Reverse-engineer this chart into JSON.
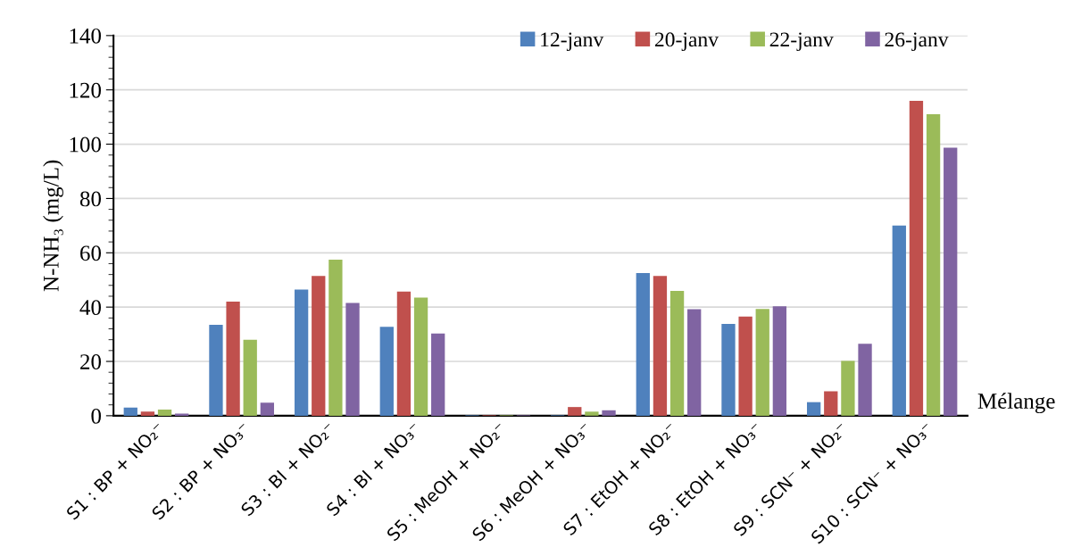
{
  "chart_data": {
    "type": "bar",
    "xlabel": "Mélange",
    "ylabel": "N-NH₃ (mg/L)",
    "categories": [
      "S1 : BP + NO₂⁻",
      "S2 : BP + NO₃⁻",
      "S3 : BI + NO₂⁻",
      "S4 : BI + NO₃⁻",
      "S5 : MeOH + NO₂⁻",
      "S6 : MeOH + NO₃⁻",
      "S7 : EtOH + NO₂⁻",
      "S8 : EtOH + NO₃⁻",
      "S9 : SCN⁻ + NO₂⁻",
      "S10 : SCN⁻ + NO₃⁻"
    ],
    "series": [
      {
        "name": "12-janv",
        "color": "#4f81bd",
        "values": [
          3,
          33.5,
          46.5,
          32.7,
          0.2,
          0.2,
          52.5,
          33.8,
          5,
          70
        ]
      },
      {
        "name": "20-janv",
        "color": "#c0504d",
        "values": [
          1.5,
          42,
          51.5,
          45.7,
          0.2,
          3.2,
          51.5,
          36.5,
          9,
          116
        ]
      },
      {
        "name": "22-janv",
        "color": "#9bbb59",
        "values": [
          2.3,
          28,
          57.5,
          43.5,
          0.2,
          1.5,
          46,
          39.3,
          20.2,
          111
        ]
      },
      {
        "name": "26-janv",
        "color": "#8064a2",
        "values": [
          0.8,
          4.8,
          41.5,
          30.3,
          0.2,
          2,
          39.2,
          40.3,
          26.5,
          98.7
        ]
      }
    ],
    "ylim": [
      0,
      140
    ],
    "yticks": [
      0,
      20,
      40,
      60,
      80,
      100,
      120,
      140
    ],
    "grid": "y",
    "legend": "top right"
  }
}
